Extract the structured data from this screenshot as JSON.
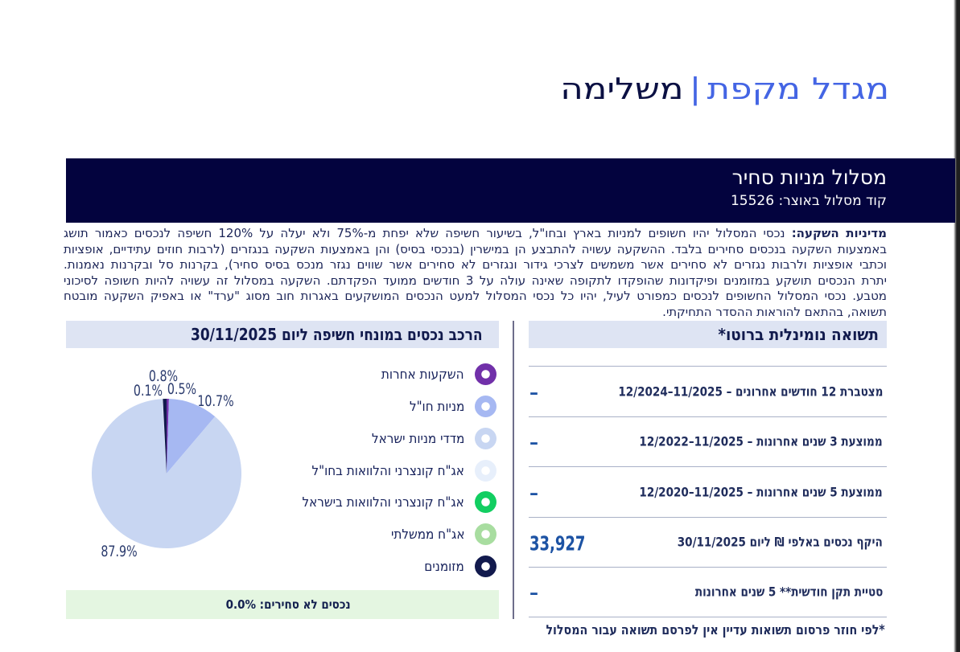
{
  "page_title": {
    "brand": "מגדל מקפת",
    "separator": "|",
    "suffix": "משלימה"
  },
  "band": {
    "title": "מסלול מניות סחיר",
    "code_line": "קוד מסלול באוצר: 15526"
  },
  "policy": {
    "lead": "מדיניות השקעה:",
    "lines": [
      "נכסי המסלול יהיו חשופים למניות בארץ ובחו\"ל, בשיעור חשיפה שלא יפחת מ-75% ולא יעלה על 120% חשיפה לנכסים כאמור תושג",
      "באמצעות השקעה בנכסים סחירים בלבד. ההשקעה עשויה להתבצע הן במישרין (בנכסי בסיס) והן באמצעות השקעה בנגזרים (לרבות חוזים עתידיים, אופציות",
      "וכתבי אופציות ולרבות נגזרים לא סחירים אשר משמשים לצרכי גידור ונגזרים לא סחירים אשר שווים נגזר מנכס בסיס סחיר), בקרנות סל ובקרנות נאמנות.",
      "יתרת הנכסים תושקע במזומנים ופיקדונות שהופקדו לתקופה שאינה עולה על 3 חודשים ממועד הפקדתם. השקעה במסלול זה עשויה להיות חשופה לסיכוני",
      "מטבע. נכסי המסלול החשופים לנכסים כמפורט לעיל, יהיו כל נכסי המסלול למעט הנכסים המושקעים באגרות חוב מסוג \"ערד\" או באפיק השקעה מובטח",
      "תשואה, בהתאם להוראות ההסדר התחיקתי."
    ]
  },
  "assets_panel": {
    "heading": "הרכב נכסים במונחי חשיפה ליום 30/11/2025",
    "non_tradable_note": "נכסים לא סחירים: 0.0%"
  },
  "chart_data": {
    "type": "pie",
    "title": "הרכב נכסים במונחי חשיפה ליום 30/11/2025",
    "labels": [
      "השקעות אחרות",
      "מניות חו\"ל",
      "מדדי מניות ישראל",
      "אג\"ח קונצרני והלוואות בחו\"ל",
      "אג\"ח קונצרני והלוואות בישראל",
      "אג\"ח ממשלתי",
      "מזומנים"
    ],
    "values": [
      0.5,
      10.7,
      87.9,
      0.1,
      0.0,
      0.0,
      0.8
    ],
    "colors": [
      "#7130a9",
      "#a6b8f2",
      "#c8d6f2",
      "#e7effb",
      "#12ce61",
      "#a8dda0",
      "#121a4d"
    ],
    "slice_labels": [
      "0.5%",
      "10.7%",
      "87.9%",
      "0.1%",
      "",
      "",
      "0.8%"
    ],
    "start_angle_deg": 0,
    "direction": "clockwise",
    "legend_position": "right"
  },
  "returns_panel": {
    "heading": "תשואה נומינלית ברוטו*",
    "rows": [
      {
        "label": "מצטברת 12 חודשים אחרונים – 12/2024‎–‎11/2025",
        "value": "–"
      },
      {
        "label": "ממוצעת 3 שנים אחרונות – 12/2022‎–‎11/2025",
        "value": "–"
      },
      {
        "label": "ממוצעת 5 שנים אחרונות – 12/2020‎–‎11/2025",
        "value": "–"
      },
      {
        "label": "היקף נכסים באלפי ₪ ליום 30/11/2025",
        "value": "33,927"
      },
      {
        "label": "סטיית תקן חודשית** 5 שנים אחרונות",
        "value": "–"
      }
    ],
    "footnote": "*לפי חוזר פרסום תשואות עדיין אין לפרסם תשואה עבור המסלול"
  },
  "colors": {
    "title_blue": "#4465e4",
    "title_navy": "#0b1043",
    "band_bg": "#03033e",
    "body_text": "#1b2457",
    "heading_bar_bg": "#dee4f3",
    "green_bar_bg": "#e4f6e1",
    "value_blue": "#1d53a4",
    "separator_line": "#a9b1c7",
    "divider": "#6e6e8b",
    "edge_strip": "#1f1f1f"
  }
}
